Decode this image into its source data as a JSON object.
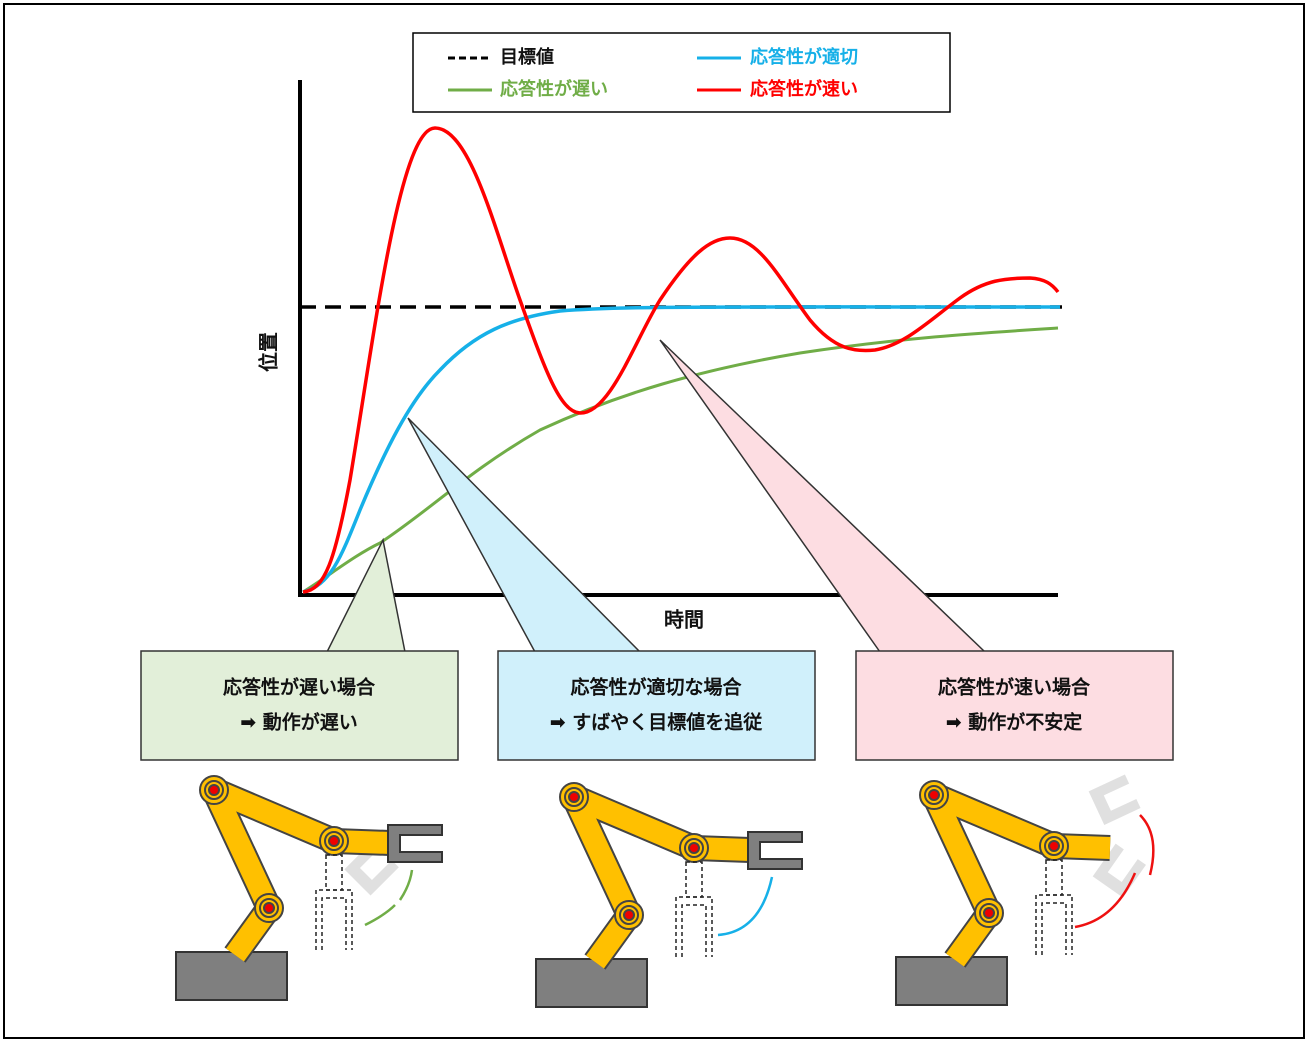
{
  "legend": {
    "items": [
      {
        "label": "目標値",
        "color": "#000000"
      },
      {
        "label": "応答性が適切",
        "color": "#16b0e8"
      },
      {
        "label": "応答性が遅い",
        "color": "#70ad47"
      },
      {
        "label": "応答性が速い",
        "color": "#ff0000"
      }
    ]
  },
  "axes": {
    "y_label": "位置",
    "x_label": "時間"
  },
  "callouts": [
    {
      "title": "応答性が遅い場合",
      "result": "➡ 動作が遅い"
    },
    {
      "title": "応答性が適切な場合",
      "result": "➡ すばやく目標値を追従"
    },
    {
      "title": "応答性が速い場合",
      "result": "➡ 動作が不安定"
    }
  ]
}
